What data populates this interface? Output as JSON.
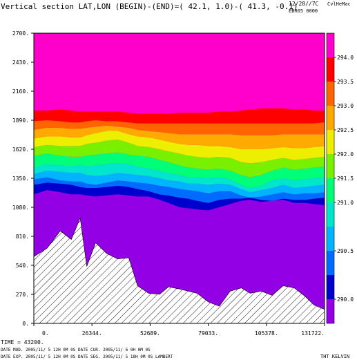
{
  "header": {
    "title": "Vertical section LAT,LON (BEGIN)-(END)=( 42.1,   1.0)-( 41.3,  -0.1)",
    "date_code": "12/28//7C",
    "user": "CvlHeMac",
    "run_id": "EBR05 0000"
  },
  "footer": {
    "time": "TIME =    43200.",
    "line2": "DATE MOD. 2005/11/ 5   12H 0M 0S      DATE CUR. 2005/11/ 6    0H 0M 0S",
    "line3": "DATE EXP.  2005/11/ 5   12H 0M 0S      DATE SEG. 2005/11/ 5   18H 0M 0S      LAMBERT",
    "variable": "THT KELVIN"
  },
  "colors": {
    "b0": "#9400e6",
    "b1": "#0000cc",
    "b2": "#006cff",
    "b3": "#00b4ff",
    "b4": "#00e6cc",
    "b5": "#00ff78",
    "b6": "#78f000",
    "b7": "#eeee00",
    "b8": "#ffaa00",
    "b9": "#ff6400",
    "b10": "#ff0000",
    "b11": "#ff00cc"
  },
  "chart_data": {
    "type": "area",
    "title": "Vertical section LAT,LON (BEGIN)-(END)=( 42.1,   1.0)-( 41.3,  -0.1)",
    "xlabel": "",
    "ylabel": "",
    "xlim": [
      0,
      131722
    ],
    "ylim": [
      0,
      2700
    ],
    "x_ticks": [
      "0.",
      "26344.",
      "52689.",
      "79033.",
      "105378.",
      "131722."
    ],
    "y_ticks": [
      "0.",
      "270.",
      "540.",
      "810.",
      "1080.",
      "1350.",
      "1620.",
      "1890.",
      "2160.",
      "2430.",
      "2700."
    ],
    "colorbar": {
      "variable": "THT KELVIN",
      "labels": [
        "290.0",
        "290.5",
        "291.0",
        "291.5",
        "292.0",
        "292.5",
        "293.0",
        "293.5",
        "294.0"
      ],
      "bands": [
        "<290.0",
        "290.0-290.25",
        "290.25-290.5",
        "290.5-290.75",
        "290.75-291.0",
        "291.0-291.5",
        "291.5-292.0",
        "292.0-292.5",
        "292.5-293.0",
        "293.0-293.25",
        "293.25-293.5",
        ">293.5"
      ]
    },
    "x": [
      0,
      6000,
      12000,
      17000,
      21000,
      24000,
      28000,
      33000,
      38000,
      43000,
      47000,
      52000,
      57000,
      61000,
      66000,
      70000,
      74000,
      79000,
      84000,
      89000,
      94000,
      98000,
      103000,
      108000,
      113000,
      118000,
      123000,
      127000,
      131722
    ],
    "terrain": [
      620,
      700,
      860,
      780,
      980,
      530,
      750,
      650,
      600,
      610,
      350,
      280,
      270,
      340,
      320,
      300,
      280,
      200,
      160,
      300,
      330,
      280,
      300,
      260,
      350,
      330,
      250,
      170,
      130
    ],
    "contours": [
      {
        "level": "290.0",
        "values": [
          1200,
          1240,
          1220,
          1200,
          1200,
          1190,
          1180,
          1190,
          1200,
          1190,
          1180,
          1180,
          1150,
          1120,
          1080,
          1070,
          1060,
          1050,
          1080,
          1110,
          1140,
          1150,
          1130,
          1140,
          1150,
          1120,
          1120,
          1110,
          1100
        ]
      },
      {
        "level": "290.25",
        "values": [
          1290,
          1310,
          1300,
          1290,
          1270,
          1260,
          1260,
          1270,
          1280,
          1270,
          1250,
          1230,
          1200,
          1190,
          1170,
          1160,
          1140,
          1120,
          1150,
          1160,
          1160,
          1170,
          1150,
          1140,
          1160,
          1150,
          1150,
          1160,
          1170
        ]
      },
      {
        "level": "290.5",
        "values": [
          1340,
          1360,
          1330,
          1320,
          1320,
          1300,
          1290,
          1310,
          1330,
          1320,
          1310,
          1300,
          1280,
          1270,
          1250,
          1240,
          1230,
          1210,
          1230,
          1230,
          1190,
          1170,
          1180,
          1200,
          1220,
          1200,
          1210,
          1210,
          1220
        ]
      },
      {
        "level": "290.75",
        "values": [
          1390,
          1420,
          1410,
          1400,
          1400,
          1380,
          1370,
          1380,
          1400,
          1390,
          1380,
          1370,
          1350,
          1330,
          1320,
          1300,
          1300,
          1290,
          1300,
          1290,
          1250,
          1220,
          1240,
          1260,
          1290,
          1260,
          1270,
          1280,
          1290
        ]
      },
      {
        "level": "291.0",
        "values": [
          1450,
          1480,
          1470,
          1460,
          1470,
          1460,
          1470,
          1480,
          1490,
          1480,
          1460,
          1440,
          1420,
          1400,
          1380,
          1360,
          1360,
          1350,
          1360,
          1340,
          1290,
          1260,
          1280,
          1330,
          1350,
          1330,
          1340,
          1350,
          1360
        ]
      },
      {
        "level": "291.5",
        "values": [
          1560,
          1580,
          1560,
          1550,
          1550,
          1560,
          1570,
          1580,
          1590,
          1570,
          1560,
          1550,
          1520,
          1500,
          1470,
          1450,
          1440,
          1430,
          1440,
          1420,
          1380,
          1360,
          1380,
          1420,
          1450,
          1430,
          1440,
          1450,
          1460
        ]
      },
      {
        "level": "292.0",
        "values": [
          1640,
          1660,
          1650,
          1650,
          1650,
          1670,
          1680,
          1700,
          1710,
          1680,
          1650,
          1640,
          1620,
          1600,
          1580,
          1560,
          1550,
          1540,
          1550,
          1540,
          1500,
          1490,
          1500,
          1520,
          1540,
          1520,
          1530,
          1540,
          1550
        ]
      },
      {
        "level": "292.5",
        "values": [
          1720,
          1740,
          1740,
          1730,
          1730,
          1750,
          1770,
          1790,
          1790,
          1760,
          1740,
          1730,
          1710,
          1690,
          1670,
          1660,
          1660,
          1650,
          1650,
          1640,
          1620,
          1620,
          1620,
          1630,
          1640,
          1630,
          1630,
          1640,
          1650
        ]
      },
      {
        "level": "293.0",
        "values": [
          1800,
          1820,
          1820,
          1810,
          1810,
          1820,
          1830,
          1840,
          1830,
          1820,
          1800,
          1790,
          1780,
          1770,
          1760,
          1760,
          1760,
          1760,
          1760,
          1760,
          1750,
          1750,
          1750,
          1750,
          1760,
          1760,
          1760,
          1760,
          1760
        ]
      },
      {
        "level": "293.25",
        "values": [
          1880,
          1890,
          1880,
          1870,
          1870,
          1880,
          1890,
          1880,
          1880,
          1870,
          1860,
          1860,
          1860,
          1860,
          1860,
          1860,
          1860,
          1860,
          1860,
          1860,
          1860,
          1860,
          1860,
          1860,
          1860,
          1860,
          1860,
          1860,
          1870
        ]
      },
      {
        "level": "293.5",
        "values": [
          1980,
          1980,
          1990,
          1980,
          1970,
          1970,
          1970,
          1970,
          1970,
          1960,
          1950,
          1950,
          1950,
          1950,
          1960,
          1960,
          1960,
          1960,
          1970,
          1970,
          1980,
          1990,
          2000,
          2000,
          2000,
          1990,
          1990,
          1980,
          1980
        ]
      }
    ]
  }
}
